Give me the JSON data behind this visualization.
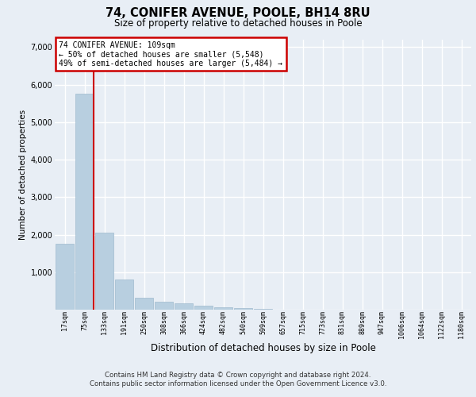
{
  "title": "74, CONIFER AVENUE, POOLE, BH14 8RU",
  "subtitle": "Size of property relative to detached houses in Poole",
  "xlabel": "Distribution of detached houses by size in Poole",
  "ylabel": "Number of detached properties",
  "categories": [
    "17sqm",
    "75sqm",
    "133sqm",
    "191sqm",
    "250sqm",
    "308sqm",
    "366sqm",
    "424sqm",
    "482sqm",
    "540sqm",
    "599sqm",
    "657sqm",
    "715sqm",
    "773sqm",
    "831sqm",
    "889sqm",
    "947sqm",
    "1006sqm",
    "1064sqm",
    "1122sqm",
    "1180sqm"
  ],
  "values": [
    1750,
    5750,
    2050,
    800,
    310,
    205,
    165,
    100,
    60,
    45,
    25,
    0,
    0,
    0,
    0,
    0,
    0,
    0,
    0,
    0,
    0
  ],
  "bar_color": "#b8cfe0",
  "bar_edge_color": "#a0bbce",
  "highlight_color": "#cc0000",
  "annotation_text": "74 CONIFER AVENUE: 109sqm\n← 50% of detached houses are smaller (5,548)\n49% of semi-detached houses are larger (5,484) →",
  "annotation_box_facecolor": "#ffffff",
  "annotation_box_edgecolor": "#cc0000",
  "vline_x": 1.45,
  "ylim": [
    0,
    7200
  ],
  "yticks": [
    0,
    1000,
    2000,
    3000,
    4000,
    5000,
    6000,
    7000
  ],
  "background_color": "#e8eef5",
  "grid_color": "#ffffff",
  "footer_line1": "Contains HM Land Registry data © Crown copyright and database right 2024.",
  "footer_line2": "Contains public sector information licensed under the Open Government Licence v3.0."
}
